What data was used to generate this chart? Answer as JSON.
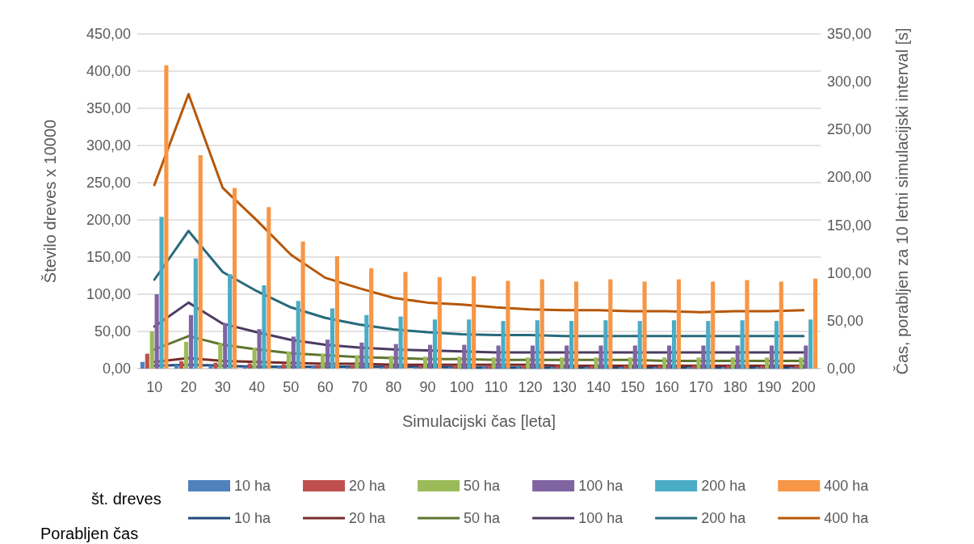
{
  "chart_data": {
    "type": "bar",
    "xlabel": "Simulacijski čas [leta]",
    "ylabel": "Število dreves x 10000",
    "y2label": "Čas, porabljen za 10 letni simulacijski interval [s]",
    "categories": [
      "10",
      "20",
      "30",
      "40",
      "50",
      "60",
      "70",
      "80",
      "90",
      "100",
      "110",
      "120",
      "130",
      "140",
      "150",
      "160",
      "170",
      "180",
      "190",
      "200"
    ],
    "series": [
      {
        "name": "10 ha",
        "color": "#4f81bd",
        "values": [
          9,
          5,
          4,
          3,
          3,
          3,
          2,
          2,
          2,
          2,
          2,
          2,
          2,
          2,
          2,
          2,
          2,
          2,
          2,
          2
        ]
      },
      {
        "name": "20 ha",
        "color": "#c0504d",
        "values": [
          20,
          10,
          8,
          7,
          6,
          5,
          5,
          4,
          4,
          4,
          4,
          4,
          4,
          4,
          4,
          4,
          4,
          4,
          4,
          4
        ]
      },
      {
        "name": "50 ha",
        "color": "#9bbb59",
        "values": [
          50,
          36,
          34,
          28,
          23,
          20,
          18,
          17,
          16,
          16,
          15,
          15,
          15,
          15,
          15,
          15,
          15,
          15,
          15,
          15
        ]
      },
      {
        "name": "100 ha",
        "color": "#8064a2",
        "values": [
          100,
          72,
          61,
          53,
          43,
          39,
          35,
          33,
          32,
          32,
          31,
          31,
          31,
          31,
          31,
          31,
          31,
          31,
          31,
          31
        ]
      },
      {
        "name": "200 ha",
        "color": "#4bacc6",
        "values": [
          204,
          148,
          127,
          112,
          91,
          81,
          72,
          70,
          66,
          66,
          64,
          65,
          64,
          65,
          64,
          65,
          64,
          65,
          64,
          66
        ]
      },
      {
        "name": "400 ha",
        "color": "#f79646",
        "values": [
          408,
          287,
          243,
          217,
          171,
          151,
          135,
          130,
          123,
          124,
          118,
          120,
          117,
          120,
          117,
          120,
          117,
          119,
          117,
          121
        ]
      },
      {
        "name": "10 ha",
        "type": "line",
        "axis": "y2",
        "color": "#1f497d",
        "values": [
          3,
          4,
          3,
          2,
          2,
          2,
          2,
          2,
          2,
          1,
          1,
          1,
          1,
          1,
          1,
          1,
          1,
          1,
          1,
          1
        ]
      },
      {
        "name": "20 ha",
        "type": "line",
        "axis": "y2",
        "color": "#772c2a",
        "values": [
          7,
          11,
          8,
          7,
          6,
          5,
          5,
          4,
          4,
          4,
          4,
          4,
          3,
          3,
          3,
          3,
          3,
          3,
          3,
          3
        ]
      },
      {
        "name": "50 ha",
        "type": "line",
        "axis": "y2",
        "color": "#5f7530",
        "values": [
          20,
          34,
          25,
          20,
          16,
          14,
          12,
          11,
          10,
          10,
          9,
          9,
          9,
          9,
          9,
          8,
          8,
          8,
          8,
          8
        ]
      },
      {
        "name": "100 ha",
        "type": "line",
        "axis": "y2",
        "color": "#4d3b62",
        "values": [
          44,
          69,
          47,
          38,
          30,
          25,
          22,
          20,
          19,
          18,
          17,
          17,
          17,
          17,
          17,
          17,
          17,
          17,
          17,
          17
        ]
      },
      {
        "name": "200 ha",
        "type": "line",
        "axis": "y2",
        "color": "#276a7c",
        "values": [
          93,
          144,
          101,
          81,
          64,
          53,
          46,
          41,
          38,
          36,
          35,
          35,
          34,
          34,
          34,
          34,
          34,
          34,
          34,
          34
        ]
      },
      {
        "name": "400 ha",
        "type": "line",
        "axis": "y2",
        "color": "#b65708",
        "values": [
          192,
          287,
          189,
          155,
          119,
          95,
          84,
          74,
          69,
          67,
          64,
          62,
          61,
          61,
          60,
          60,
          59,
          60,
          60,
          61
        ]
      }
    ],
    "ylim": [
      0,
      450
    ],
    "yticks": [
      {
        "value": 0,
        "label": "0,00"
      },
      {
        "value": 50,
        "label": "50,00"
      },
      {
        "value": 100,
        "label": "100,00"
      },
      {
        "value": 150,
        "label": "150,00"
      },
      {
        "value": 200,
        "label": "200,00"
      },
      {
        "value": 250,
        "label": "250,00"
      },
      {
        "value": 300,
        "label": "300,00"
      },
      {
        "value": 350,
        "label": "350,00"
      },
      {
        "value": 400,
        "label": "400,00"
      },
      {
        "value": 450,
        "label": "450,00"
      }
    ],
    "y2lim": [
      0,
      350
    ],
    "y2ticks": [
      {
        "value": 0,
        "label": "0,00"
      },
      {
        "value": 50,
        "label": "50,00"
      },
      {
        "value": 100,
        "label": "100,00"
      },
      {
        "value": 150,
        "label": "150,00"
      },
      {
        "value": 200,
        "label": "200,00"
      },
      {
        "value": 250,
        "label": "250,00"
      },
      {
        "value": 300,
        "label": "300,00"
      },
      {
        "value": 350,
        "label": "350,00"
      }
    ],
    "grid": "y",
    "legend": "bottom",
    "marker": "none",
    "annotations": [
      "št. dreves",
      "Porabljen čas"
    ]
  }
}
